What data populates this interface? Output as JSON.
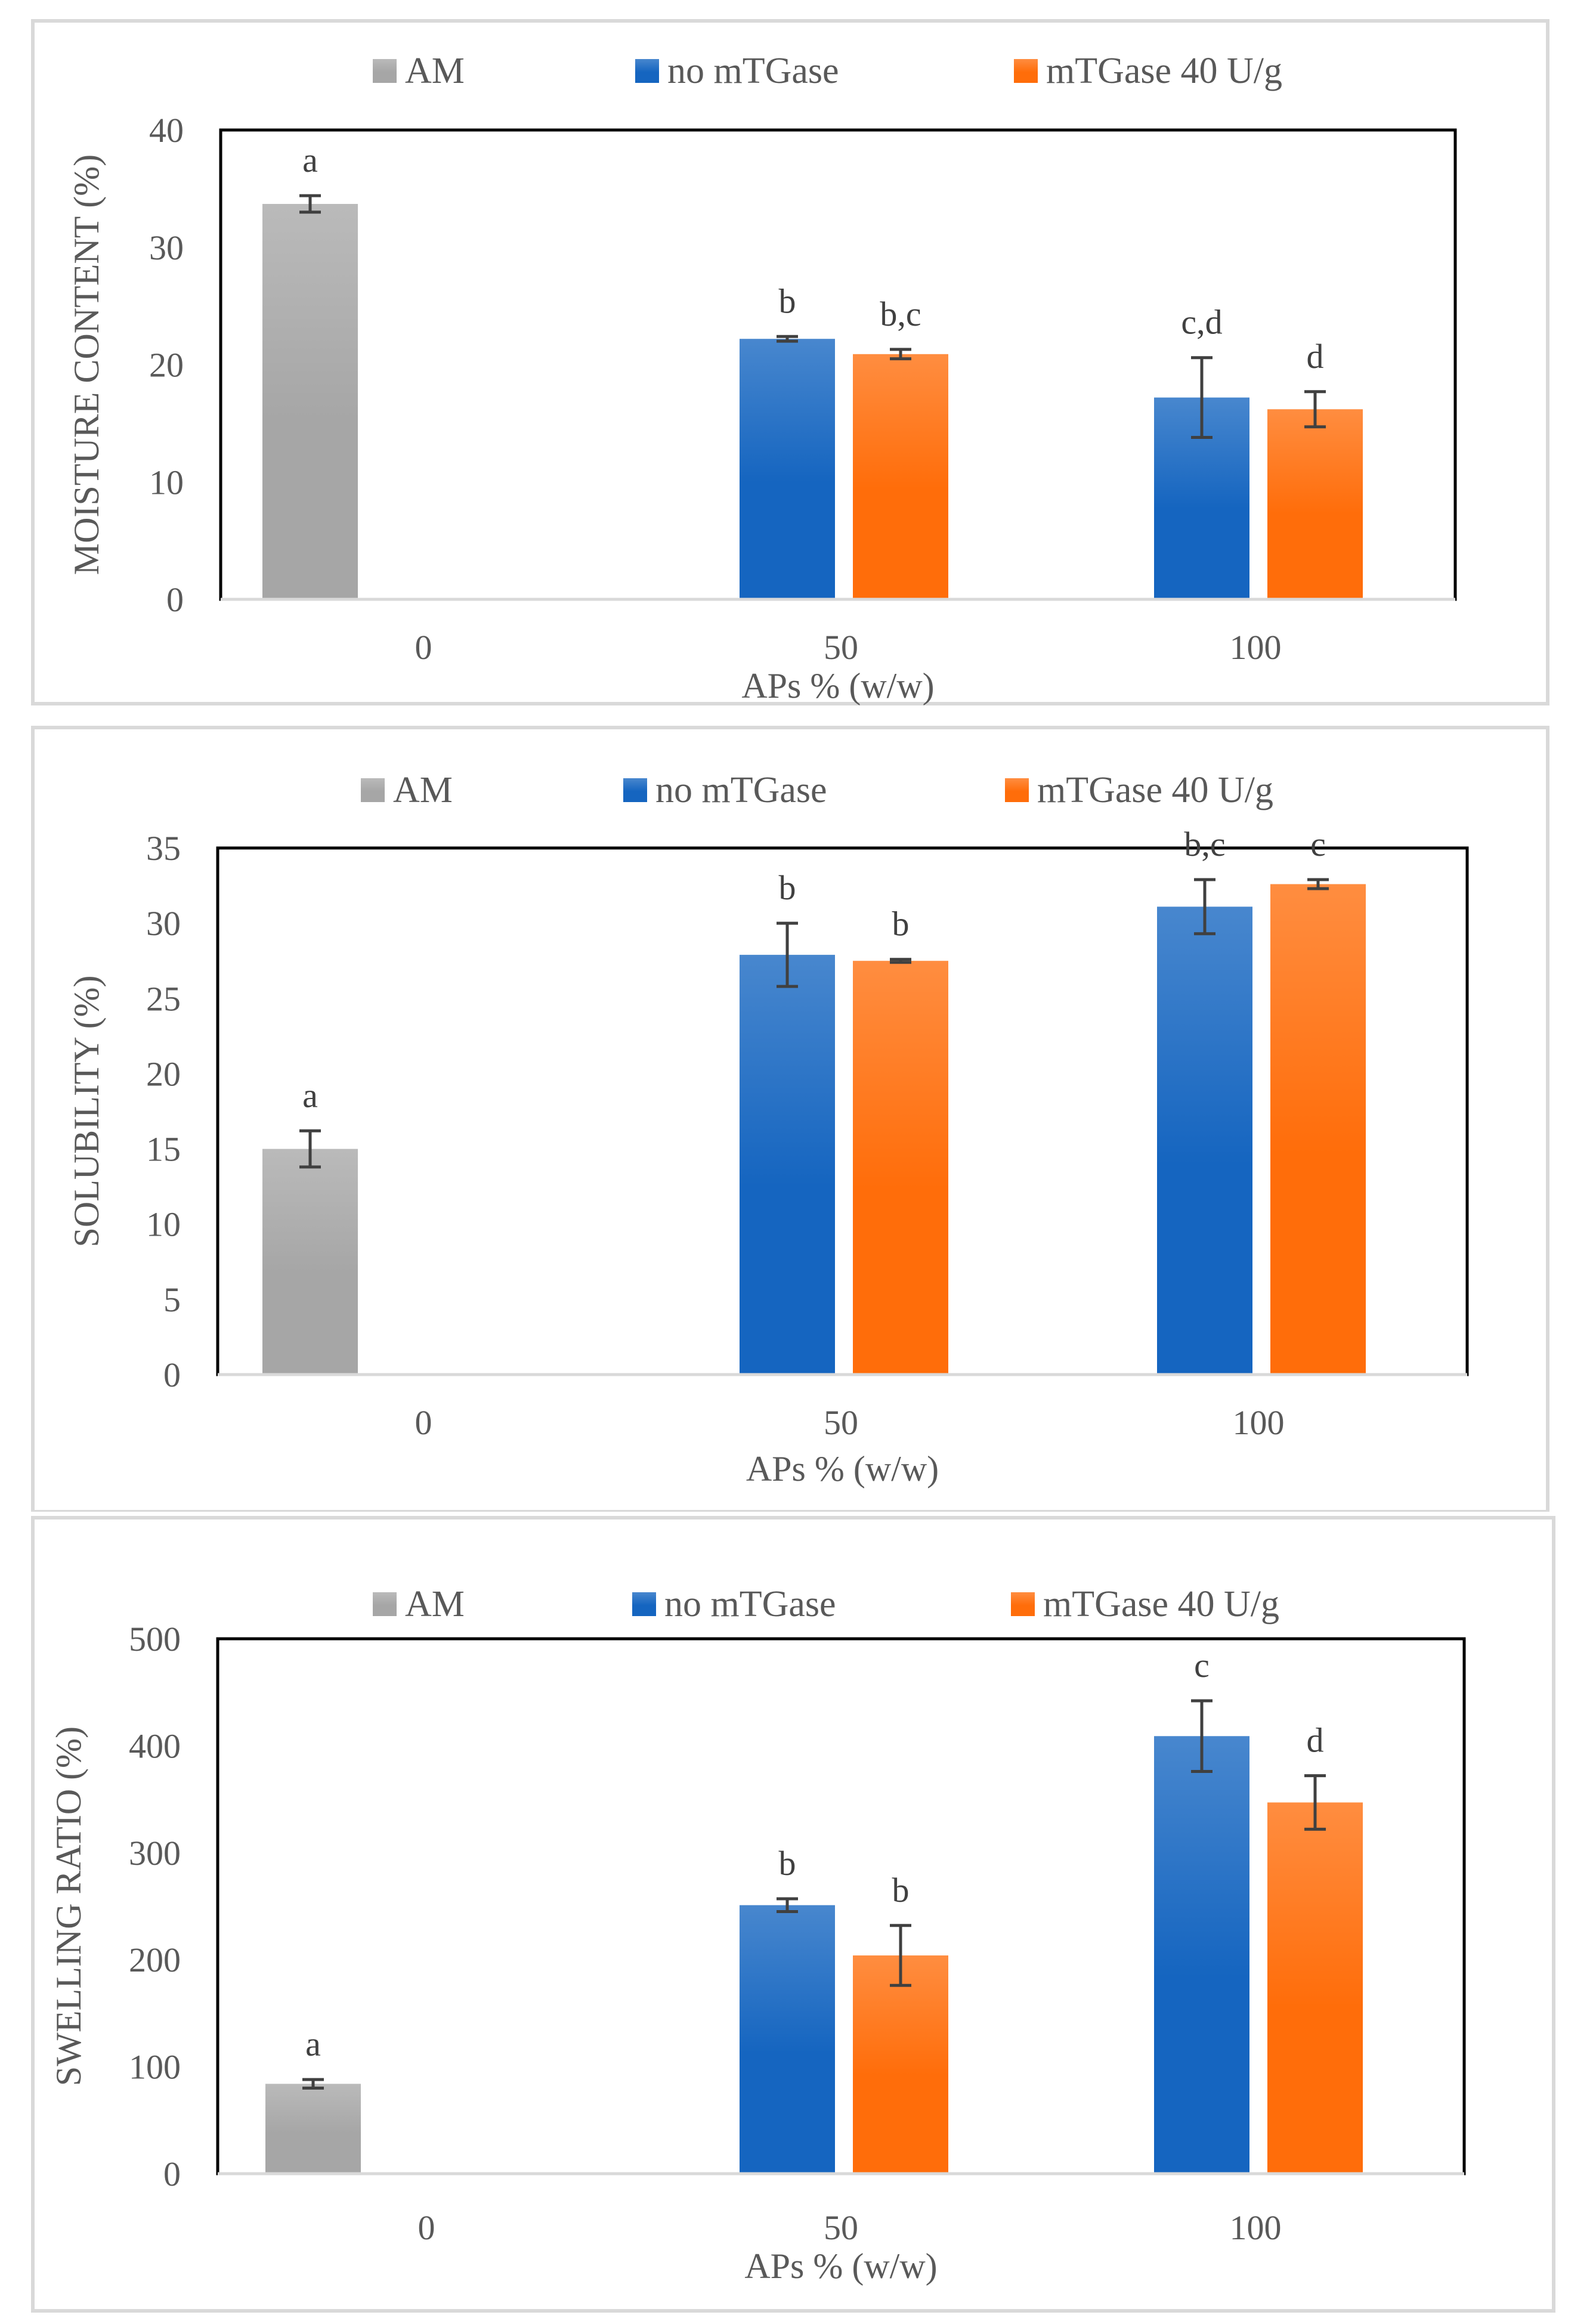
{
  "charts": [
    {
      "type": "bar",
      "title": "",
      "xlabel": "APs % (w/w)",
      "ylabel": "MOISTURE CONTENT (%)",
      "ylim": [
        0,
        40
      ],
      "yticks": [
        0,
        10,
        20,
        30,
        40
      ],
      "categories": [
        "0",
        "50",
        "100"
      ],
      "legend": [
        "AM",
        "no mTGase",
        "mTGase 40 U/g"
      ],
      "bars": [
        {
          "series": "AM",
          "category": "0",
          "value": 33.7,
          "err": 0.7,
          "label": "a"
        },
        {
          "series": "no mTGase",
          "category": "50",
          "value": 22.2,
          "err": 0.2,
          "label": "b"
        },
        {
          "series": "mTGase 40 U/g",
          "category": "50",
          "value": 20.9,
          "err": 0.4,
          "label": "b,c"
        },
        {
          "series": "no mTGase",
          "category": "100",
          "value": 17.2,
          "err": 3.4,
          "label": "c,d"
        },
        {
          "series": "mTGase 40 U/g",
          "category": "100",
          "value": 16.2,
          "err": 1.5,
          "label": "d"
        }
      ]
    },
    {
      "type": "bar",
      "title": "",
      "xlabel": "APs % (w/w)",
      "ylabel": "SOLUBILITY (%)",
      "ylim": [
        0,
        35
      ],
      "yticks": [
        0,
        5,
        10,
        15,
        20,
        25,
        30,
        35
      ],
      "categories": [
        "0",
        "50",
        "100"
      ],
      "legend": [
        "AM",
        "no mTGase",
        "mTGase 40 U/g"
      ],
      "bars": [
        {
          "series": "AM",
          "category": "0",
          "value": 15.0,
          "err": 1.2,
          "label": "a"
        },
        {
          "series": "no mTGase",
          "category": "50",
          "value": 27.9,
          "err": 2.1,
          "label": "b"
        },
        {
          "series": "mTGase 40 U/g",
          "category": "50",
          "value": 27.5,
          "err": 0.1,
          "label": "b"
        },
        {
          "series": "no mTGase",
          "category": "100",
          "value": 31.1,
          "err": 1.8,
          "label": "b,c"
        },
        {
          "series": "mTGase 40 U/g",
          "category": "100",
          "value": 32.6,
          "err": 0.3,
          "label": "c"
        }
      ]
    },
    {
      "type": "bar",
      "title": "",
      "xlabel": "APs % (w/w)",
      "ylabel": "SWELLING RATIO  (%)",
      "ylim": [
        0,
        500
      ],
      "yticks": [
        0,
        100,
        200,
        300,
        400,
        500
      ],
      "categories": [
        "0",
        "50",
        "100"
      ],
      "legend": [
        "AM",
        "no mTGase",
        "mTGase 40 U/g"
      ],
      "bars": [
        {
          "series": "AM",
          "category": "0",
          "value": 84,
          "err": 4,
          "label": "a"
        },
        {
          "series": "no mTGase",
          "category": "50",
          "value": 251,
          "err": 6,
          "label": "b"
        },
        {
          "series": "mTGase 40 U/g",
          "category": "50",
          "value": 204,
          "err": 28,
          "label": "b"
        },
        {
          "series": "no mTGase",
          "category": "100",
          "value": 409,
          "err": 33,
          "label": "c"
        },
        {
          "series": "mTGase 40 U/g",
          "category": "100",
          "value": 347,
          "err": 25,
          "label": "d"
        }
      ]
    }
  ],
  "colors": {
    "AM": "#a6a6a6",
    "no mTGase": "#1565c0",
    "mTGase 40 U/g": "#ff6d0a"
  }
}
